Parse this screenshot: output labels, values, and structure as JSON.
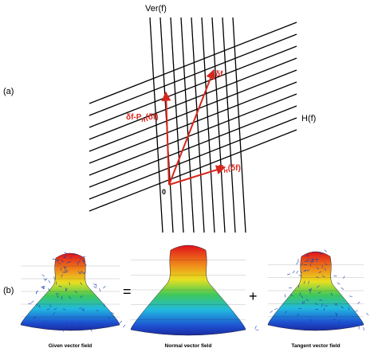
{
  "panel_a": {
    "label": "(a)",
    "vertical_axis": "Ver(f)",
    "horizontal_axis": "H(f)",
    "origin": "0",
    "vector_df": "δf",
    "vector_normal": {
      "main": "δf-P",
      "sub": "H",
      "rest": "(δf)"
    },
    "vector_tangent": {
      "main": "P",
      "sub": "H",
      "rest": "(δf)"
    }
  },
  "panel_b": {
    "label": "(b)",
    "equals": "=",
    "plus": "+",
    "captions": [
      "Given vector field",
      "Normal vector field",
      "Tangent vector field"
    ]
  }
}
